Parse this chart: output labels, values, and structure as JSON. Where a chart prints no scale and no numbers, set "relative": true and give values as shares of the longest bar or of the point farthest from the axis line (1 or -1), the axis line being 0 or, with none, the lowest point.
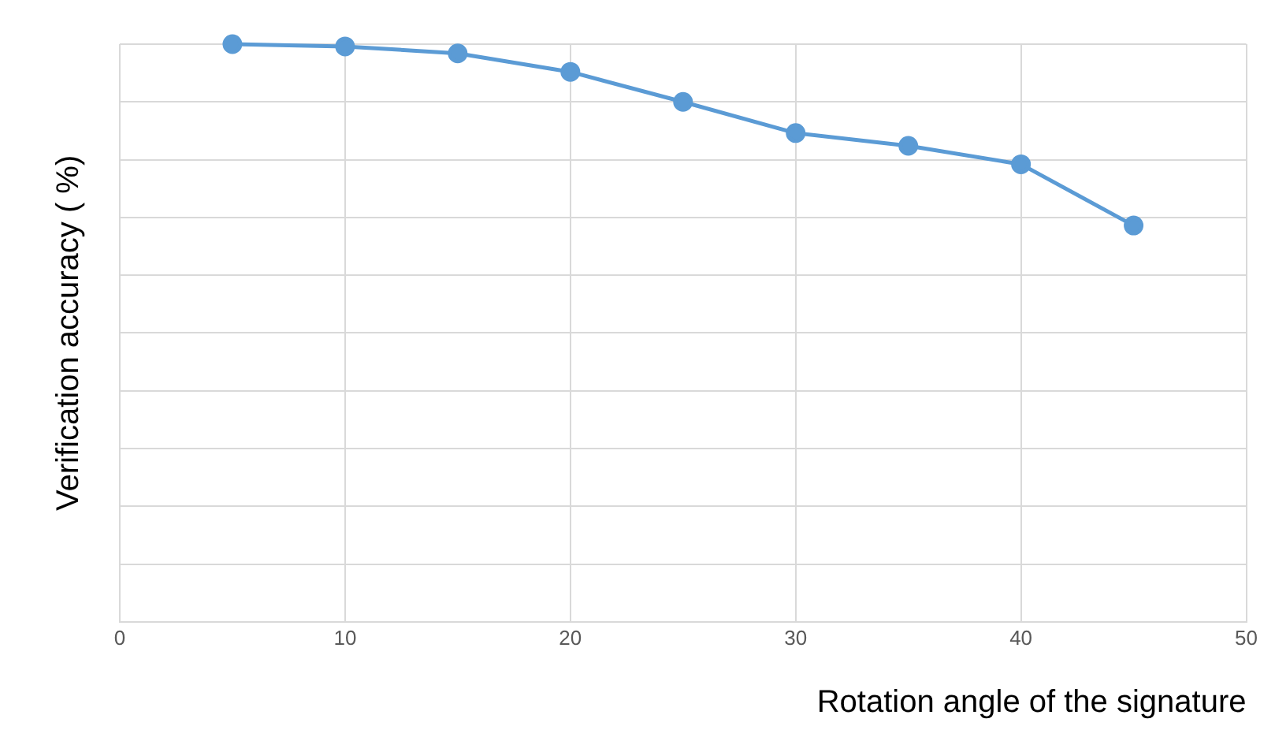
{
  "chart_data": {
    "type": "line",
    "xlabel": "Rotation angle of the signature",
    "ylabel": "Verification accuracy ( %)",
    "relative": true,
    "x": [
      5,
      10,
      15,
      20,
      25,
      30,
      35,
      40,
      45
    ],
    "series": [
      {
        "color": "#5b9bd5",
        "values": [
          1,
          0.996,
          0.984,
          0.952,
          0.9,
          0.846,
          0.824,
          0.792,
          0.686
        ]
      }
    ],
    "xlim": [
      0,
      50
    ],
    "xticks": [
      0,
      10,
      20,
      30,
      40,
      50
    ],
    "grid": true,
    "marker": "circle",
    "line_style": "solid",
    "legend": false
  }
}
